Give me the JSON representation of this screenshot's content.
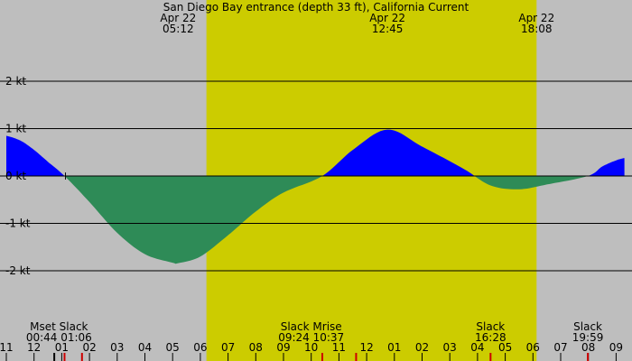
{
  "chart_data": {
    "type": "area",
    "title": "San Diego Bay entrance (depth 33 ft), California Current",
    "ylabel": "",
    "xlabel": "",
    "ylim": [
      -2.5,
      2.5
    ],
    "y_ticks": [
      "2 kt",
      "1 kt",
      "0 kt",
      "-1 kt",
      "-2 kt"
    ],
    "y_tick_values": [
      2,
      1,
      0,
      -1,
      -2
    ],
    "x_range_hours": [
      23.0,
      34.3
    ],
    "hour_tick_labels": [
      "11",
      "12",
      "01",
      "02",
      "03",
      "04",
      "05",
      "06",
      "07",
      "08",
      "09",
      "10",
      "11",
      "12",
      "01",
      "02",
      "03",
      "04",
      "05",
      "06",
      "07",
      "08",
      "09"
    ],
    "hour_tick_values": [
      23,
      24,
      25,
      26,
      27,
      28,
      29,
      30,
      31,
      32,
      33,
      34,
      35,
      36,
      37,
      38,
      39,
      40,
      41,
      42,
      43,
      44,
      45
    ],
    "daylight": {
      "start_hour": 30.22,
      "end_hour": 42.13,
      "color": "#cccc00"
    },
    "night_color": "#bebebe",
    "flood_color": "#0000ff",
    "ebb_color": "#2e8b57",
    "top_labels": [
      {
        "date": "Apr 22",
        "time": "05:12",
        "hour": 29.2
      },
      {
        "date": "Apr 22",
        "time": "12:45",
        "hour": 36.75
      },
      {
        "date": "Apr 22",
        "time": "18:08",
        "hour": 42.13
      }
    ],
    "bottom_events": [
      {
        "name": "Mset Slack",
        "time": "00:44 01:06",
        "hour": 24.9
      },
      {
        "name": "Slack Mrise",
        "time": "09:24 10:37",
        "hour": 34.0
      },
      {
        "name": "Slack",
        "time": "16:28",
        "hour": 40.47
      },
      {
        "name": "Slack",
        "time": "19:59",
        "hour": 43.98
      }
    ],
    "event_markers": [
      {
        "hour": 24.73,
        "color": "#000000"
      },
      {
        "hour": 25.73,
        "color": "#cc0000"
      },
      {
        "hour": 25.1,
        "color": "#cc0000"
      },
      {
        "hour": 34.4,
        "color": "#cc0000"
      },
      {
        "hour": 35.62,
        "color": "#cc0000"
      },
      {
        "hour": 40.47,
        "color": "#cc0000"
      },
      {
        "hour": 43.98,
        "color": "#cc0000"
      }
    ],
    "series": [
      {
        "x": [
          23.0,
          23.5,
          24.0,
          24.5,
          25.1,
          26.0,
          27.0,
          28.0,
          29.0,
          29.2,
          30.0,
          31.0,
          32.0,
          33.0,
          34.4,
          35.5,
          36.75,
          38.0,
          39.5,
          40.47,
          41.5,
          42.5,
          43.98,
          44.5,
          45.0,
          45.3
        ],
        "y": [
          0.85,
          0.75,
          0.55,
          0.3,
          0.0,
          -0.55,
          -1.2,
          -1.65,
          -1.83,
          -1.84,
          -1.7,
          -1.25,
          -0.75,
          -0.35,
          0.0,
          0.55,
          0.98,
          0.62,
          0.15,
          -0.2,
          -0.28,
          -0.18,
          0.0,
          0.2,
          0.33,
          0.38
        ]
      }
    ]
  }
}
